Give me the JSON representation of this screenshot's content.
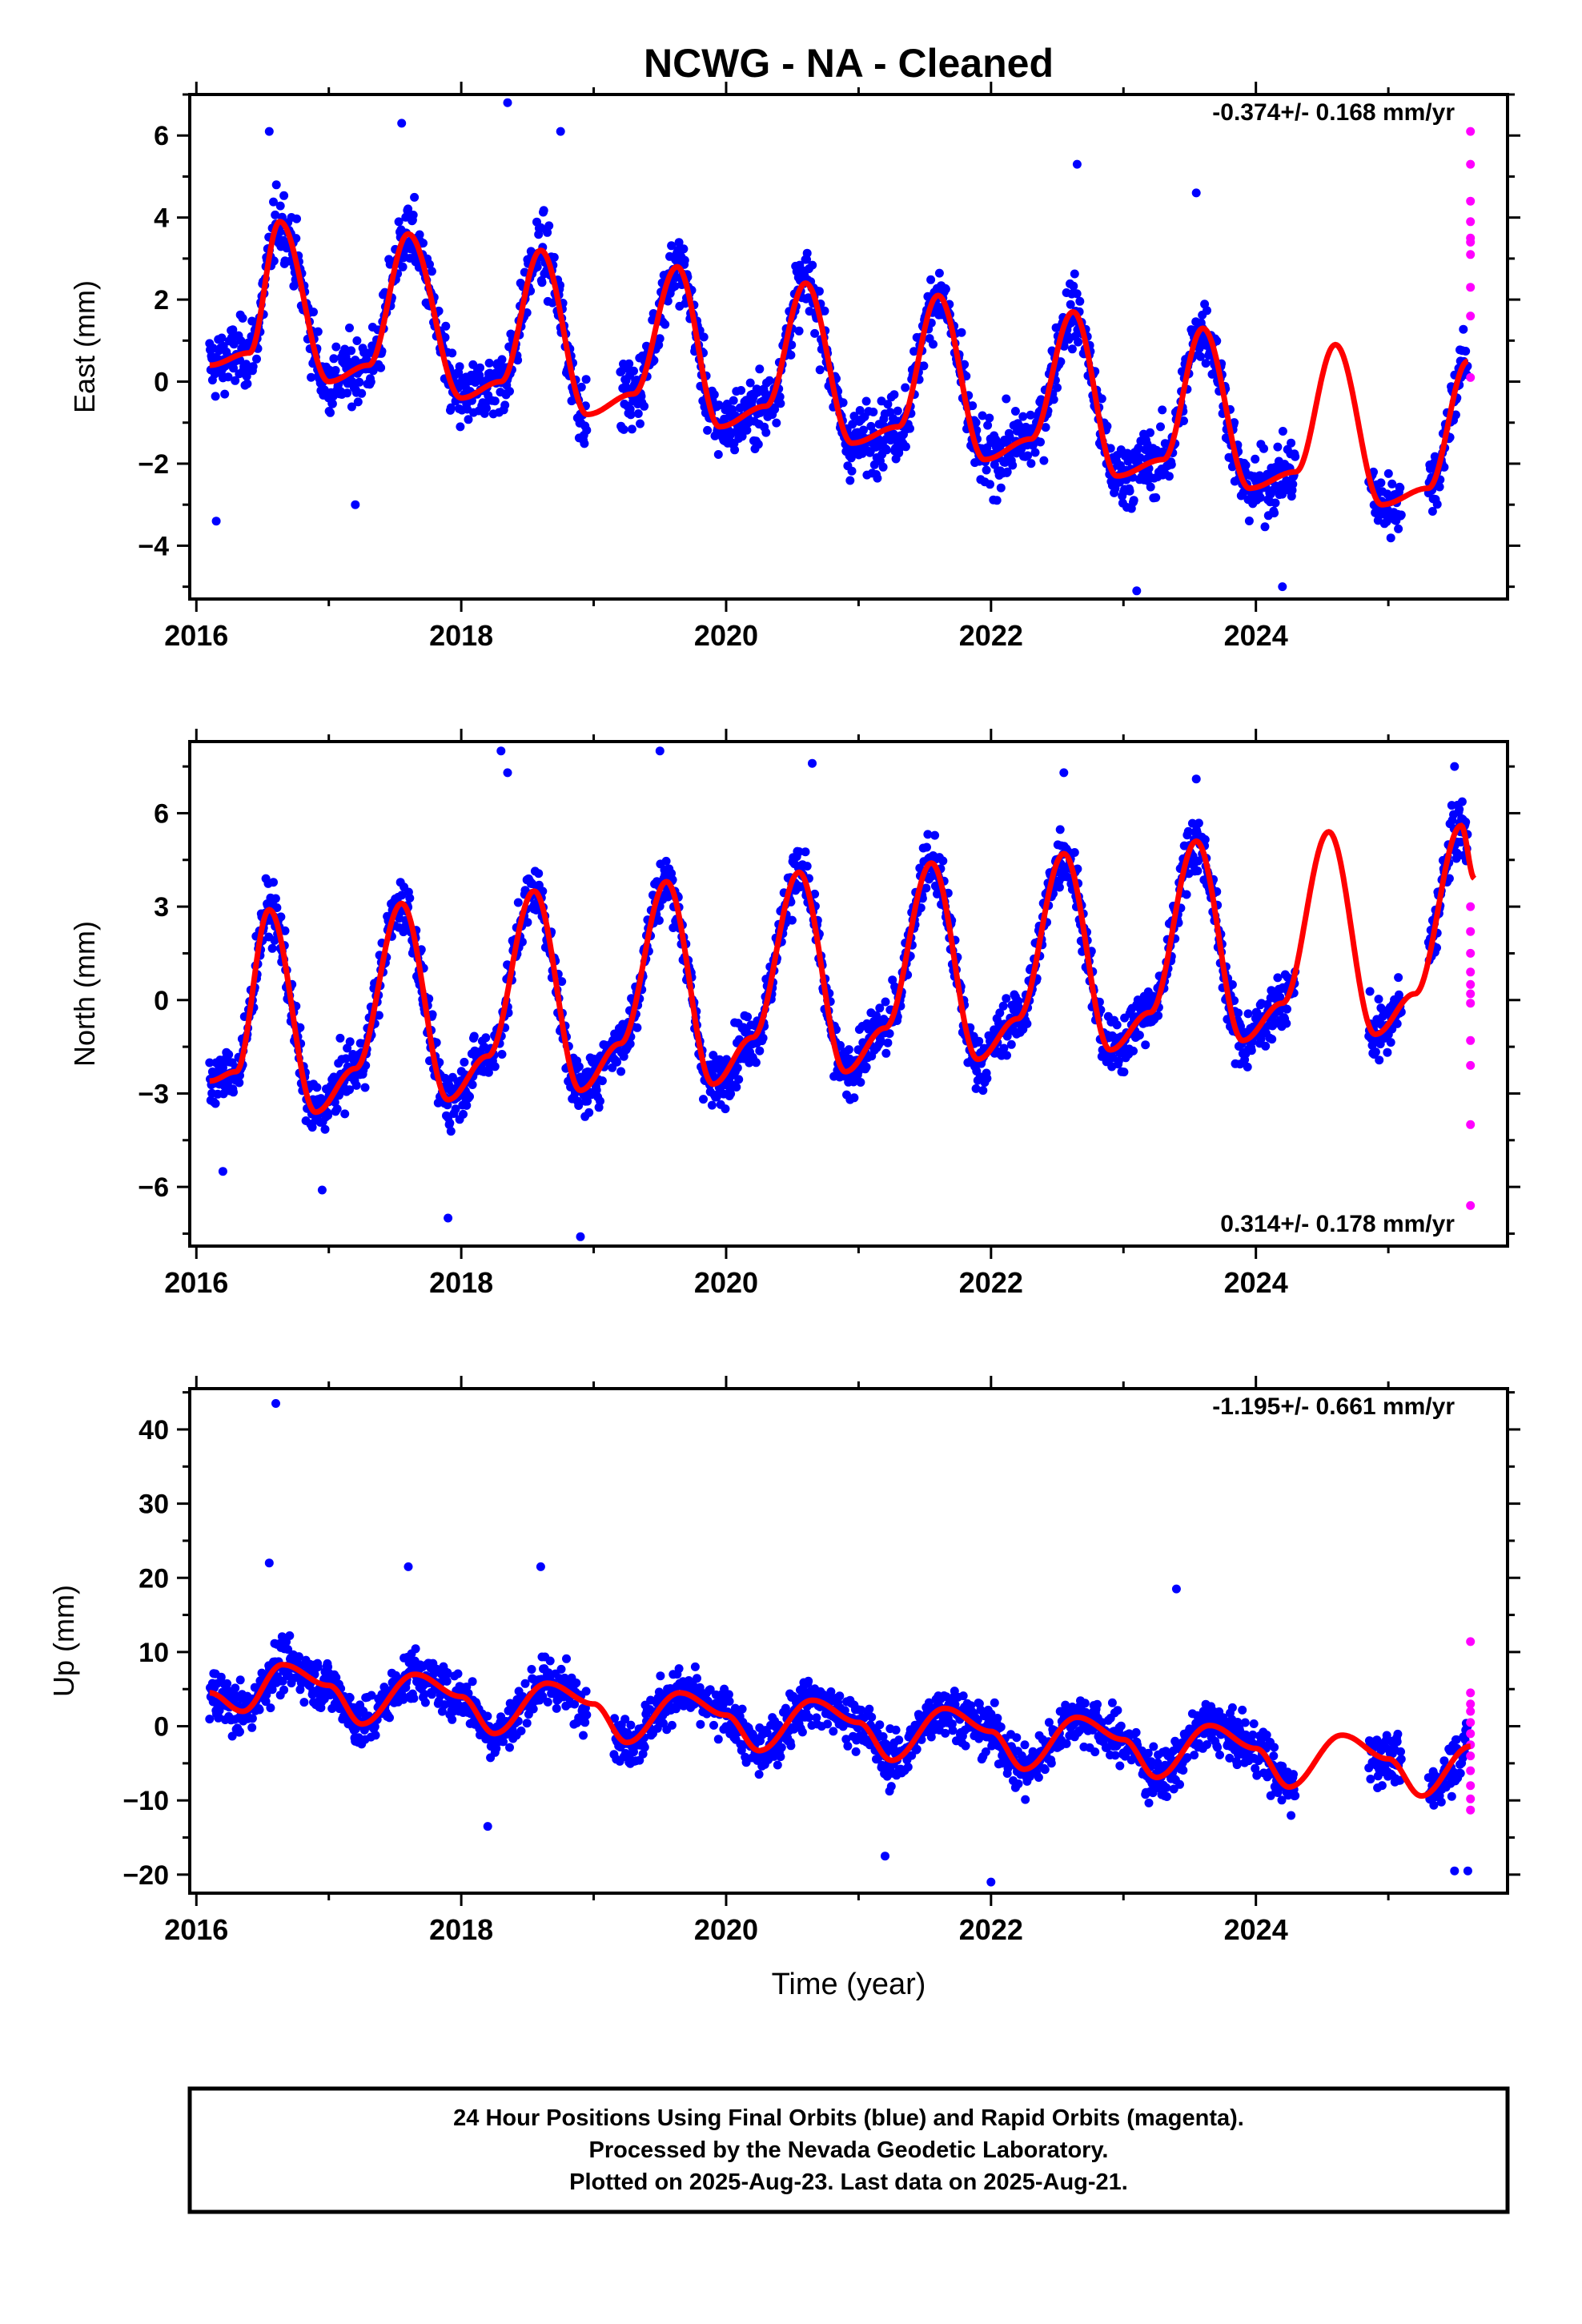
{
  "title": "NCWG  - NA - Cleaned",
  "xlabel": "Time (year)",
  "colors": {
    "final": "#0000ff",
    "rapid": "#ff00ff",
    "model": "#ff0000",
    "frame": "#000000"
  },
  "footer": {
    "line1": "24 Hour Positions Using Final Orbits (blue) and Rapid Orbits (magenta).",
    "line2": "Processed by the Nevada Geodetic Laboratory.",
    "line3": "Plotted on 2025-Aug-23. Last data on 2025-Aug-21."
  },
  "chart_data": [
    {
      "type": "scatter",
      "name": "east",
      "ylabel": "East (mm)",
      "rate_label": "-0.374+/- 0.168 mm/yr",
      "xlim": [
        2015.95,
        2025.9
      ],
      "ylim": [
        -5.3,
        7.0
      ],
      "x_ticks": [
        2016,
        2018,
        2020,
        2022,
        2024
      ],
      "y_ticks": [
        -4,
        -2,
        0,
        2,
        4,
        6
      ],
      "noise": 0.9,
      "model": {
        "offset": 0.5,
        "trend": -0.374,
        "t0": 2016.1,
        "amp": 2.0,
        "phase": 2016.63,
        "knots": [
          [
            2016.1,
            0.4
          ],
          [
            2016.4,
            0.7
          ],
          [
            2016.63,
            3.9
          ],
          [
            2017.0,
            0.0
          ],
          [
            2017.3,
            0.4
          ],
          [
            2017.6,
            3.6
          ],
          [
            2018.0,
            -0.4
          ],
          [
            2018.3,
            0.0
          ],
          [
            2018.6,
            3.2
          ],
          [
            2018.95,
            -0.8
          ],
          [
            2019.3,
            -0.3
          ],
          [
            2019.63,
            2.8
          ],
          [
            2019.95,
            -1.1
          ],
          [
            2020.3,
            -0.6
          ],
          [
            2020.6,
            2.4
          ],
          [
            2020.95,
            -1.5
          ],
          [
            2021.3,
            -1.1
          ],
          [
            2021.6,
            2.1
          ],
          [
            2021.95,
            -1.9
          ],
          [
            2022.3,
            -1.4
          ],
          [
            2022.62,
            1.7
          ],
          [
            2022.95,
            -2.3
          ],
          [
            2023.3,
            -1.9
          ],
          [
            2023.6,
            1.3
          ],
          [
            2023.95,
            -2.6
          ],
          [
            2024.3,
            -2.2
          ],
          [
            2024.6,
            0.9
          ],
          [
            2024.95,
            -3.0
          ],
          [
            2025.3,
            -2.6
          ],
          [
            2025.6,
            0.5
          ]
        ]
      },
      "gaps": [
        [
          2018.95,
          2019.2
        ],
        [
          2024.3,
          2024.85
        ],
        [
          2025.1,
          2025.3
        ]
      ],
      "rapid_y": [
        6.1,
        5.3,
        4.4,
        3.9,
        3.5,
        3.4,
        3.1,
        2.3,
        1.6,
        0.1
      ],
      "outliers": [
        [
          2018.35,
          6.8
        ],
        [
          2016.55,
          6.1
        ],
        [
          2017.55,
          6.3
        ],
        [
          2018.75,
          6.1
        ],
        [
          2022.65,
          5.3
        ],
        [
          2023.55,
          4.6
        ],
        [
          2023.1,
          -5.1
        ],
        [
          2024.2,
          -5.0
        ],
        [
          2016.15,
          -3.4
        ],
        [
          2017.2,
          -3.0
        ]
      ]
    },
    {
      "type": "scatter",
      "name": "north",
      "ylabel": "North (mm)",
      "rate_label": "0.314+/- 0.178 mm/yr",
      "xlim": [
        2015.95,
        2025.9
      ],
      "ylim": [
        -7.9,
        8.3
      ],
      "x_ticks": [
        2016,
        2018,
        2020,
        2022,
        2024
      ],
      "y_ticks": [
        -6,
        -3,
        0,
        3,
        6
      ],
      "noise": 1.0,
      "model": {
        "knots": [
          [
            2016.1,
            -2.6
          ],
          [
            2016.3,
            -2.3
          ],
          [
            2016.55,
            2.9
          ],
          [
            2016.9,
            -3.6
          ],
          [
            2017.2,
            -2.2
          ],
          [
            2017.55,
            3.1
          ],
          [
            2017.9,
            -3.2
          ],
          [
            2018.2,
            -1.8
          ],
          [
            2018.55,
            3.5
          ],
          [
            2018.9,
            -2.9
          ],
          [
            2019.2,
            -1.4
          ],
          [
            2019.55,
            3.8
          ],
          [
            2019.9,
            -2.7
          ],
          [
            2020.2,
            -1.2
          ],
          [
            2020.55,
            4.1
          ],
          [
            2020.9,
            -2.3
          ],
          [
            2021.2,
            -0.9
          ],
          [
            2021.55,
            4.4
          ],
          [
            2021.9,
            -1.9
          ],
          [
            2022.2,
            -0.6
          ],
          [
            2022.55,
            4.7
          ],
          [
            2022.9,
            -1.6
          ],
          [
            2023.2,
            -0.4
          ],
          [
            2023.55,
            5.1
          ],
          [
            2023.9,
            -1.3
          ],
          [
            2024.2,
            -0.1
          ],
          [
            2024.55,
            5.4
          ],
          [
            2024.9,
            -1.1
          ],
          [
            2025.2,
            0.2
          ],
          [
            2025.55,
            5.6
          ],
          [
            2025.65,
            3.9
          ]
        ]
      },
      "gaps": [
        [
          2024.3,
          2024.85
        ],
        [
          2025.1,
          2025.3
        ]
      ],
      "rapid_y": [
        3.0,
        2.2,
        1.5,
        0.9,
        0.5,
        0.2,
        -0.1,
        -1.3,
        -2.1,
        -4.0,
        -6.6
      ],
      "outliers": [
        [
          2018.3,
          8.0
        ],
        [
          2019.5,
          8.0
        ],
        [
          2020.65,
          7.6
        ],
        [
          2018.35,
          7.3
        ],
        [
          2022.55,
          7.3
        ],
        [
          2023.55,
          7.1
        ],
        [
          2025.5,
          7.5
        ],
        [
          2018.9,
          -7.6
        ],
        [
          2017.9,
          -7.0
        ],
        [
          2016.95,
          -6.1
        ],
        [
          2016.2,
          -5.5
        ]
      ]
    },
    {
      "type": "scatter",
      "name": "up",
      "ylabel": "Up (mm)",
      "rate_label": "-1.195+/- 0.661 mm/yr",
      "xlim": [
        2015.95,
        2025.9
      ],
      "ylim": [
        -22.5,
        45.5
      ],
      "x_ticks": [
        2016,
        2018,
        2020,
        2022,
        2024
      ],
      "y_ticks": [
        -20,
        -10,
        0,
        10,
        20,
        30,
        40
      ],
      "noise": 3.8,
      "model": {
        "knots": [
          [
            2016.1,
            4.5
          ],
          [
            2016.35,
            2.0
          ],
          [
            2016.65,
            8.3
          ],
          [
            2017.0,
            5.5
          ],
          [
            2017.25,
            0.3
          ],
          [
            2017.65,
            7.0
          ],
          [
            2018.0,
            4.0
          ],
          [
            2018.25,
            -1.0
          ],
          [
            2018.65,
            5.8
          ],
          [
            2019.0,
            3.0
          ],
          [
            2019.25,
            -2.2
          ],
          [
            2019.65,
            4.5
          ],
          [
            2020.0,
            1.5
          ],
          [
            2020.25,
            -3.3
          ],
          [
            2020.65,
            3.5
          ],
          [
            2021.0,
            0.5
          ],
          [
            2021.25,
            -4.6
          ],
          [
            2021.65,
            2.4
          ],
          [
            2022.0,
            -0.7
          ],
          [
            2022.25,
            -5.8
          ],
          [
            2022.65,
            1.2
          ],
          [
            2023.0,
            -1.8
          ],
          [
            2023.25,
            -6.9
          ],
          [
            2023.65,
            0.1
          ],
          [
            2024.0,
            -3.0
          ],
          [
            2024.25,
            -8.2
          ],
          [
            2024.65,
            -1.2
          ],
          [
            2025.0,
            -4.4
          ],
          [
            2025.25,
            -9.4
          ],
          [
            2025.62,
            -2.7
          ]
        ]
      },
      "gaps": [
        [
          2018.95,
          2019.15
        ],
        [
          2024.3,
          2024.85
        ],
        [
          2025.1,
          2025.3
        ]
      ],
      "rapid_y": [
        11.4,
        4.5,
        3.0,
        2.0,
        0.5,
        -1.0,
        -2.5,
        -4.0,
        -6.0,
        -8.0,
        -9.8,
        -11.3
      ],
      "outliers": [
        [
          2016.6,
          43.5
        ],
        [
          2017.6,
          21.5
        ],
        [
          2018.6,
          21.5
        ],
        [
          2016.55,
          22.0
        ],
        [
          2023.4,
          18.5
        ],
        [
          2022.0,
          -21.0
        ],
        [
          2021.2,
          -17.5
        ],
        [
          2025.5,
          -19.5
        ],
        [
          2025.6,
          -19.5
        ],
        [
          2018.2,
          -13.5
        ]
      ]
    }
  ]
}
